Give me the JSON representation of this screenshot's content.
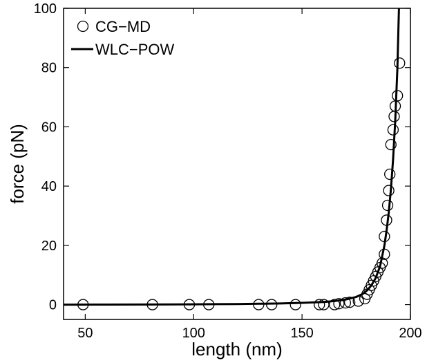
{
  "chart_data": {
    "type": "scatter",
    "xlabel": "length (nm)",
    "ylabel": "force (pN)",
    "xlim": [
      40,
      200
    ],
    "ylim": [
      -5,
      100
    ],
    "xticks": [
      50,
      100,
      150,
      200
    ],
    "yticks": [
      0,
      20,
      40,
      60,
      80,
      100
    ],
    "grid": false,
    "legend_position": "top-left",
    "series": [
      {
        "name": "CG−MD",
        "kind": "markers",
        "marker": "open-circle",
        "color": "#000000",
        "points": [
          [
            49,
            0
          ],
          [
            81,
            0
          ],
          [
            98,
            0
          ],
          [
            107,
            0
          ],
          [
            130,
            0
          ],
          [
            136,
            0
          ],
          [
            147,
            0
          ],
          [
            158,
            0
          ],
          [
            160,
            0
          ],
          [
            165,
            0
          ],
          [
            167,
            0.3
          ],
          [
            170,
            0.6
          ],
          [
            172,
            0.8
          ],
          [
            176,
            1.2
          ],
          [
            179,
            2
          ],
          [
            180,
            3.5
          ],
          [
            181,
            5
          ],
          [
            182,
            6.5
          ],
          [
            183,
            8
          ],
          [
            184,
            9.5
          ],
          [
            185,
            11
          ],
          [
            186,
            12.5
          ],
          [
            187,
            14
          ],
          [
            188,
            17
          ],
          [
            188,
            23
          ],
          [
            189,
            28.5
          ],
          [
            189.5,
            33.5
          ],
          [
            190,
            38.5
          ],
          [
            190.5,
            44
          ],
          [
            191,
            54
          ],
          [
            192,
            59
          ],
          [
            192.5,
            63.5
          ],
          [
            193,
            67
          ],
          [
            194,
            70.5
          ],
          [
            195,
            81.5
          ]
        ]
      },
      {
        "name": "WLC−POW",
        "kind": "line",
        "color": "#000000",
        "points": [
          [
            40,
            0
          ],
          [
            60,
            0.02
          ],
          [
            80,
            0.05
          ],
          [
            100,
            0.1
          ],
          [
            110,
            0.15
          ],
          [
            120,
            0.2
          ],
          [
            130,
            0.3
          ],
          [
            140,
            0.4
          ],
          [
            150,
            0.6
          ],
          [
            160,
            0.9
          ],
          [
            165,
            1.2
          ],
          [
            170,
            1.7
          ],
          [
            175,
            2.6
          ],
          [
            178,
            3.6
          ],
          [
            180,
            4.8
          ],
          [
            182,
            6.5
          ],
          [
            184,
            9
          ],
          [
            186,
            13
          ],
          [
            188,
            20
          ],
          [
            189,
            25
          ],
          [
            190,
            31
          ],
          [
            191,
            39
          ],
          [
            192,
            49
          ],
          [
            193,
            62
          ],
          [
            194,
            80
          ],
          [
            194.7,
            100
          ]
        ]
      }
    ]
  }
}
